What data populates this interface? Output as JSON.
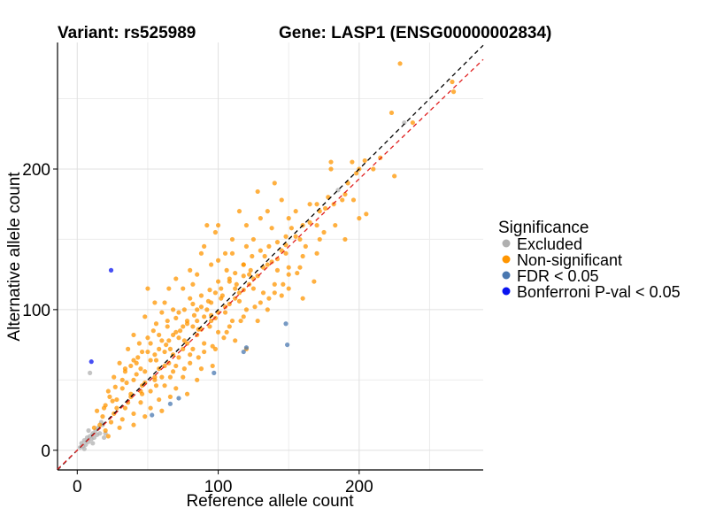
{
  "chart_data": {
    "type": "scatter",
    "title_left": "Variant: rs525989",
    "title_right": "Gene: LASP1 (ENSG00000002834)",
    "xlabel": "Reference allele count",
    "ylabel": "Alternative allele count",
    "xlim": [
      -14,
      288
    ],
    "ylim": [
      -14,
      290
    ],
    "xticks": [
      0,
      100,
      200
    ],
    "yticks": [
      0,
      100,
      200
    ],
    "minor_grid": [
      50,
      150,
      250
    ],
    "reference_lines": [
      {
        "name": "identity",
        "slope": 1,
        "intercept": 0,
        "color": "#000000",
        "dash": "dashed"
      },
      {
        "name": "fit",
        "slope": 0.965,
        "intercept": 0,
        "color": "#e02020",
        "dash": "dashed"
      }
    ],
    "legend": {
      "title": "Significance",
      "position": "right",
      "entries": [
        {
          "label": "Excluded",
          "color": "#b0b0b0"
        },
        {
          "label": "Non-significant",
          "color": "#ff9500"
        },
        {
          "label": "FDR < 0.05",
          "color": "#4a78b0"
        },
        {
          "label": "Bonferroni P-val < 0.05",
          "color": "#0a14f0"
        }
      ]
    },
    "series": [
      {
        "name": "Excluded",
        "color": "#b0b0b0",
        "points": [
          [
            2,
            2
          ],
          [
            3,
            5
          ],
          [
            4,
            3
          ],
          [
            5,
            7
          ],
          [
            6,
            4
          ],
          [
            7,
            9
          ],
          [
            8,
            6
          ],
          [
            9,
            10
          ],
          [
            10,
            8
          ],
          [
            11,
            12
          ],
          [
            12,
            9
          ],
          [
            13,
            14
          ],
          [
            14,
            11
          ],
          [
            15,
            16
          ],
          [
            16,
            12
          ],
          [
            18,
            18
          ],
          [
            19,
            9
          ],
          [
            20,
            12
          ],
          [
            5,
            1
          ],
          [
            9,
            55
          ],
          [
            185,
            185
          ],
          [
            232,
            233
          ],
          [
            8,
            14
          ],
          [
            17,
            20
          ],
          [
            11,
            5
          ]
        ]
      },
      {
        "name": "Non-significant",
        "color": "#ff9500",
        "points": [
          [
            229,
            275
          ],
          [
            223,
            240
          ],
          [
            266,
            262
          ],
          [
            267,
            255
          ],
          [
            238,
            233
          ],
          [
            204,
            206
          ],
          [
            200,
            200
          ],
          [
            198,
            197
          ],
          [
            210,
            200
          ],
          [
            215,
            208
          ],
          [
            225,
            195
          ],
          [
            195,
            205
          ],
          [
            188,
            178
          ],
          [
            192,
            190
          ],
          [
            180,
            205
          ],
          [
            176,
            172
          ],
          [
            172,
            170
          ],
          [
            178,
            180
          ],
          [
            182,
            175
          ],
          [
            190,
            182
          ],
          [
            183,
            160
          ],
          [
            196,
            178
          ],
          [
            200,
            165
          ],
          [
            205,
            168
          ],
          [
            190,
            150
          ],
          [
            175,
            155
          ],
          [
            172,
            150
          ],
          [
            160,
            160
          ],
          [
            165,
            175
          ],
          [
            150,
            165
          ],
          [
            155,
            170
          ],
          [
            145,
            178
          ],
          [
            140,
            190
          ],
          [
            135,
            170
          ],
          [
            128,
            184
          ],
          [
            130,
            165
          ],
          [
            138,
            158
          ],
          [
            148,
            140
          ],
          [
            162,
            145
          ],
          [
            170,
            140
          ],
          [
            158,
            130
          ],
          [
            150,
            125
          ],
          [
            168,
            120
          ],
          [
            142,
            128
          ],
          [
            125,
            150
          ],
          [
            120,
            160
          ],
          [
            115,
            170
          ],
          [
            110,
            150
          ],
          [
            118,
            132
          ],
          [
            105,
            140
          ],
          [
            108,
            120
          ],
          [
            98,
            155
          ],
          [
            92,
            160
          ],
          [
            95,
            132
          ],
          [
            88,
            140
          ],
          [
            85,
            125
          ],
          [
            82,
            118
          ],
          [
            102,
            115
          ],
          [
            112,
            108
          ],
          [
            122,
            118
          ],
          [
            132,
            112
          ],
          [
            140,
            112
          ],
          [
            145,
            110
          ],
          [
            150,
            115
          ],
          [
            160,
            108
          ],
          [
            135,
            100
          ],
          [
            128,
            92
          ],
          [
            118,
            95
          ],
          [
            108,
            88
          ],
          [
            100,
            98
          ],
          [
            95,
            105
          ],
          [
            90,
            95
          ],
          [
            85,
            100
          ],
          [
            80,
            108
          ],
          [
            75,
            115
          ],
          [
            70,
            122
          ],
          [
            65,
            115
          ],
          [
            72,
            98
          ],
          [
            78,
            90
          ],
          [
            86,
            86
          ],
          [
            94,
            88
          ],
          [
            104,
            80
          ],
          [
            112,
            78
          ],
          [
            120,
            72
          ],
          [
            98,
            72
          ],
          [
            90,
            70
          ],
          [
            82,
            72
          ],
          [
            76,
            78
          ],
          [
            70,
            84
          ],
          [
            64,
            92
          ],
          [
            60,
            98
          ],
          [
            55,
            105
          ],
          [
            50,
            115
          ],
          [
            48,
            95
          ],
          [
            54,
            85
          ],
          [
            60,
            78
          ],
          [
            66,
            72
          ],
          [
            72,
            66
          ],
          [
            80,
            62
          ],
          [
            88,
            58
          ],
          [
            96,
            60
          ],
          [
            85,
            50
          ],
          [
            75,
            52
          ],
          [
            68,
            56
          ],
          [
            62,
            60
          ],
          [
            56,
            64
          ],
          [
            50,
            70
          ],
          [
            44,
            76
          ],
          [
            40,
            82
          ],
          [
            36,
            72
          ],
          [
            42,
            62
          ],
          [
            48,
            56
          ],
          [
            55,
            50
          ],
          [
            62,
            46
          ],
          [
            70,
            44
          ],
          [
            78,
            40
          ],
          [
            66,
            38
          ],
          [
            58,
            36
          ],
          [
            52,
            42
          ],
          [
            46,
            46
          ],
          [
            40,
            50
          ],
          [
            34,
            56
          ],
          [
            30,
            62
          ],
          [
            26,
            52
          ],
          [
            32,
            44
          ],
          [
            38,
            38
          ],
          [
            45,
            34
          ],
          [
            52,
            30
          ],
          [
            60,
            28
          ],
          [
            48,
            24
          ],
          [
            40,
            26
          ],
          [
            34,
            30
          ],
          [
            28,
            36
          ],
          [
            22,
            42
          ],
          [
            20,
            32
          ],
          [
            26,
            26
          ],
          [
            32,
            22
          ],
          [
            40,
            18
          ],
          [
            30,
            16
          ],
          [
            24,
            20
          ],
          [
            18,
            24
          ],
          [
            14,
            28
          ],
          [
            16,
            18
          ],
          [
            20,
            14
          ],
          [
            12,
            16
          ],
          [
            22,
            10
          ],
          [
            25,
            35
          ],
          [
            35,
            48
          ],
          [
            45,
            58
          ],
          [
            55,
            68
          ],
          [
            65,
            78
          ],
          [
            75,
            88
          ],
          [
            85,
            92
          ],
          [
            95,
            96
          ],
          [
            105,
            102
          ],
          [
            115,
            112
          ],
          [
            125,
            122
          ],
          [
            135,
            132
          ],
          [
            145,
            142
          ],
          [
            155,
            152
          ],
          [
            165,
            162
          ],
          [
            58,
            72
          ],
          [
            68,
            82
          ],
          [
            78,
            92
          ],
          [
            88,
            102
          ],
          [
            98,
            112
          ],
          [
            108,
            122
          ],
          [
            118,
            132
          ],
          [
            28,
            30
          ],
          [
            38,
            40
          ],
          [
            48,
            48
          ],
          [
            58,
            58
          ],
          [
            68,
            68
          ],
          [
            78,
            76
          ],
          [
            88,
            86
          ],
          [
            98,
            94
          ],
          [
            108,
            104
          ],
          [
            118,
            114
          ],
          [
            128,
            124
          ],
          [
            138,
            134
          ],
          [
            148,
            146
          ],
          [
            45,
            42
          ],
          [
            55,
            52
          ],
          [
            65,
            62
          ],
          [
            75,
            72
          ],
          [
            85,
            82
          ],
          [
            95,
            92
          ],
          [
            105,
            98
          ],
          [
            115,
            106
          ],
          [
            125,
            115
          ],
          [
            63,
            75
          ],
          [
            73,
            85
          ],
          [
            83,
            96
          ],
          [
            93,
            106
          ],
          [
            103,
            110
          ],
          [
            113,
            118
          ],
          [
            123,
            128
          ],
          [
            133,
            138
          ],
          [
            42,
            54
          ],
          [
            52,
            64
          ],
          [
            62,
            70
          ],
          [
            72,
            80
          ],
          [
            82,
            88
          ],
          [
            92,
            100
          ],
          [
            102,
            108
          ],
          [
            112,
            115
          ],
          [
            122,
            125
          ],
          [
            132,
            130
          ],
          [
            142,
            136
          ],
          [
            36,
            34
          ],
          [
            46,
            40
          ],
          [
            56,
            46
          ],
          [
            66,
            52
          ],
          [
            76,
            58
          ],
          [
            86,
            66
          ],
          [
            96,
            74
          ],
          [
            106,
            84
          ],
          [
            116,
            92
          ],
          [
            126,
            102
          ],
          [
            136,
            108
          ],
          [
            146,
            118
          ],
          [
            156,
            126
          ],
          [
            68,
            100
          ],
          [
            80,
            128
          ],
          [
            100,
            135
          ],
          [
            110,
            140
          ],
          [
            120,
            145
          ],
          [
            100,
            160
          ],
          [
            90,
            145
          ],
          [
            62,
            105
          ],
          [
            56,
            90
          ],
          [
            50,
            80
          ],
          [
            43,
            66
          ],
          [
            38,
            60
          ],
          [
            32,
            50
          ],
          [
            27,
            45
          ],
          [
            23,
            38
          ],
          [
            19,
            30
          ],
          [
            60,
            52
          ],
          [
            70,
            60
          ],
          [
            80,
            68
          ],
          [
            90,
            76
          ],
          [
            100,
            84
          ],
          [
            110,
            92
          ],
          [
            120,
            100
          ],
          [
            130,
            105
          ],
          [
            140,
            118
          ],
          [
            150,
            130
          ],
          [
            160,
            138
          ],
          [
            170,
            160
          ],
          [
            170,
            175
          ],
          [
            180,
            200
          ],
          [
            158,
            150
          ],
          [
            152,
            158
          ],
          [
            148,
            152
          ],
          [
            142,
            148
          ],
          [
            136,
            145
          ],
          [
            130,
            142
          ],
          [
            124,
            138
          ],
          [
            118,
            124
          ],
          [
            112,
            126
          ],
          [
            106,
            128
          ],
          [
            100,
            120
          ],
          [
            94,
            114
          ],
          [
            88,
            110
          ],
          [
            82,
            104
          ],
          [
            76,
            100
          ],
          [
            70,
            94
          ],
          [
            64,
            88
          ],
          [
            58,
            82
          ],
          [
            52,
            76
          ],
          [
            46,
            70
          ],
          [
            40,
            64
          ],
          [
            34,
            58
          ]
        ]
      },
      {
        "name": "FDR < 0.05",
        "color": "#4a78b0",
        "points": [
          [
            148,
            90
          ],
          [
            149,
            75
          ],
          [
            120,
            73
          ],
          [
            118,
            70
          ],
          [
            97,
            55
          ],
          [
            72,
            37
          ],
          [
            66,
            33
          ],
          [
            53,
            25
          ]
        ]
      },
      {
        "name": "Bonferroni P-val < 0.05",
        "color": "#0a14f0",
        "points": [
          [
            24,
            128
          ],
          [
            10,
            63
          ]
        ]
      }
    ]
  }
}
